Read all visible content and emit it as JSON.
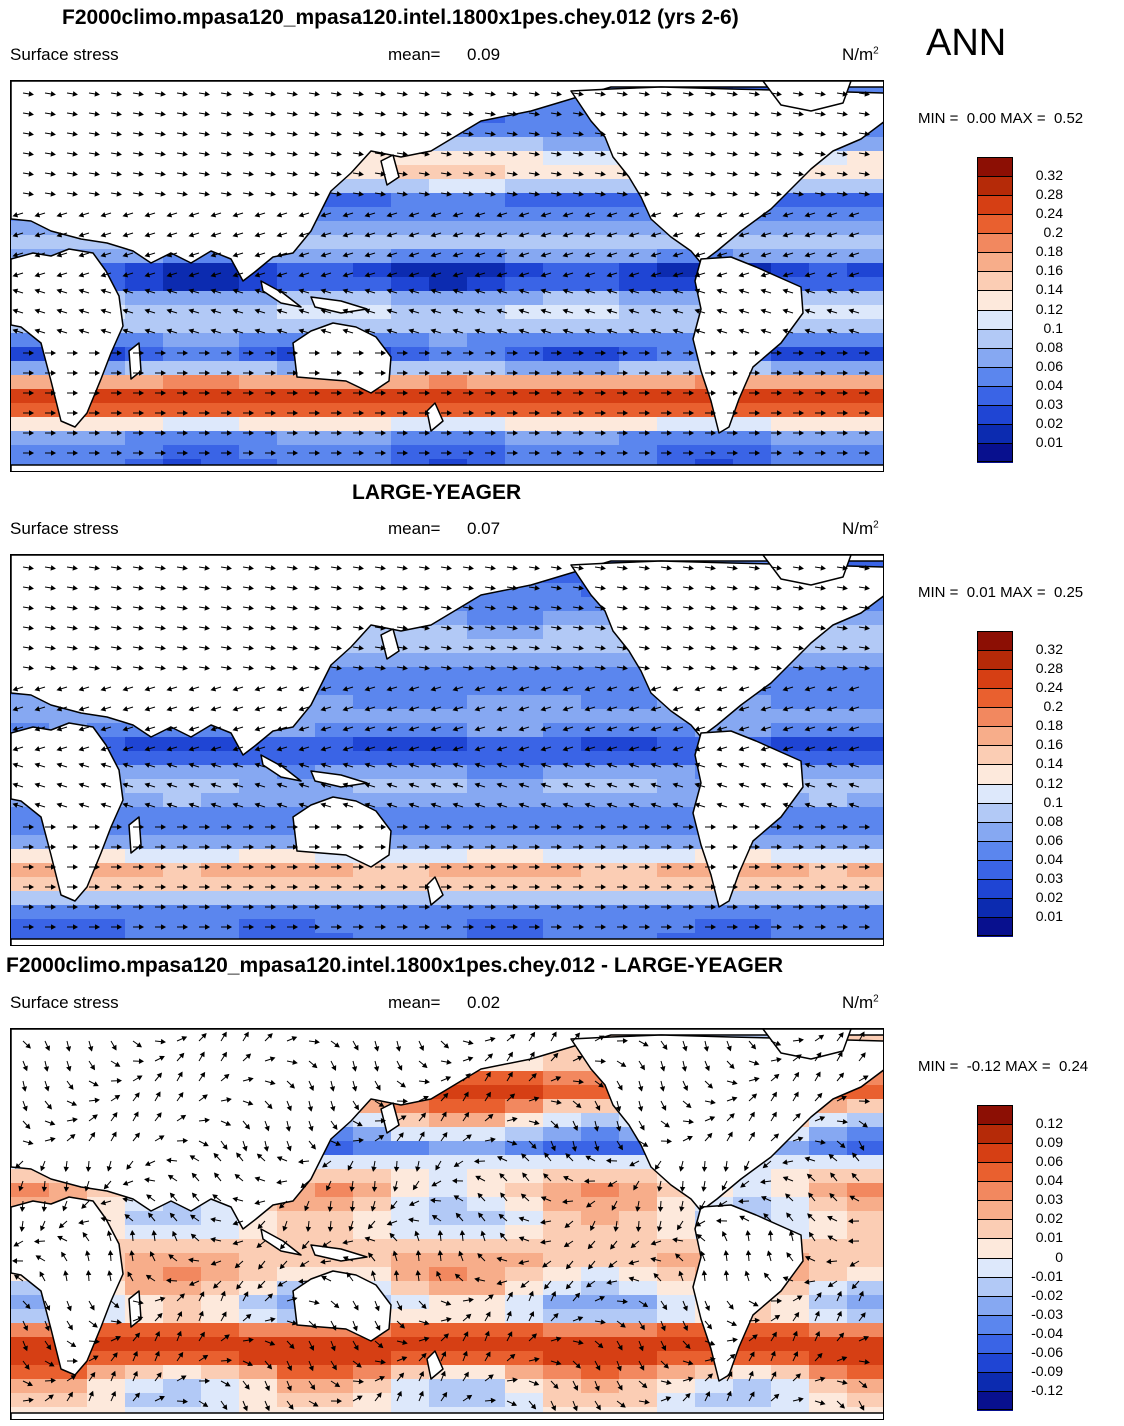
{
  "season": "ANN",
  "chart_data": [
    {
      "type": "heatmap",
      "title": "F2000climo.mpasa120_mpasa120.intel.1800x1pes.chey.012 (yrs 2-6)",
      "variable": "Surface stress",
      "mean_label": "mean=",
      "mean": "0.09",
      "units": "N/m",
      "units_exp": "2",
      "min_label": "MIN =",
      "min": "0.00",
      "max_label": "MAX =",
      "max": "0.52",
      "levels": [
        "0.01",
        "0.02",
        "0.03",
        "0.04",
        "0.06",
        "0.08",
        "0.1",
        "0.12",
        "0.14",
        "0.16",
        "0.18",
        "0.2",
        "0.24",
        "0.28",
        "0.32"
      ],
      "colors": [
        "#08108e",
        "#0c2bb0",
        "#1f45d4",
        "#3a64e6",
        "#5b86ee",
        "#86a8f2",
        "#b2c9f6",
        "#dde8fb",
        "#fde9dc",
        "#fbcdb4",
        "#f7ad8a",
        "#f2885f",
        "#e9602f",
        "#d63f14",
        "#b52a08",
        "#8c0f04"
      ]
    },
    {
      "type": "heatmap",
      "title": "LARGE-YEAGER",
      "variable": "Surface stress",
      "mean_label": "mean=",
      "mean": "0.07",
      "units": "N/m",
      "units_exp": "2",
      "min_label": "MIN =",
      "min": "0.01",
      "max_label": "MAX =",
      "max": "0.25",
      "levels": [
        "0.01",
        "0.02",
        "0.03",
        "0.04",
        "0.06",
        "0.08",
        "0.1",
        "0.12",
        "0.14",
        "0.16",
        "0.18",
        "0.2",
        "0.24",
        "0.28",
        "0.32"
      ],
      "colors": [
        "#08108e",
        "#0c2bb0",
        "#1f45d4",
        "#3a64e6",
        "#5b86ee",
        "#86a8f2",
        "#b2c9f6",
        "#dde8fb",
        "#fde9dc",
        "#fbcdb4",
        "#f7ad8a",
        "#f2885f",
        "#e9602f",
        "#d63f14",
        "#b52a08",
        "#8c0f04"
      ]
    },
    {
      "type": "heatmap",
      "title": "F2000climo.mpasa120_mpasa120.intel.1800x1pes.chey.012 - LARGE-YEAGER",
      "variable": "Surface stress",
      "mean_label": "mean=",
      "mean": "0.02",
      "units": "N/m",
      "units_exp": "2",
      "min_label": "MIN =",
      "min": "-0.12",
      "max_label": "MAX =",
      "max": "0.24",
      "levels": [
        "-0.12",
        "-0.09",
        "-0.06",
        "-0.04",
        "-0.03",
        "-0.02",
        "-0.01",
        "0",
        "0.01",
        "0.02",
        "0.03",
        "0.04",
        "0.06",
        "0.09",
        "0.12"
      ],
      "colors": [
        "#08108e",
        "#0c2bb0",
        "#1f45d4",
        "#3a64e6",
        "#5b86ee",
        "#86a8f2",
        "#b2c9f6",
        "#dde8fb",
        "#fde9dc",
        "#fbcdb4",
        "#f7ad8a",
        "#f2885f",
        "#e9602f",
        "#d63f14",
        "#b52a08",
        "#8c0f04"
      ]
    }
  ]
}
